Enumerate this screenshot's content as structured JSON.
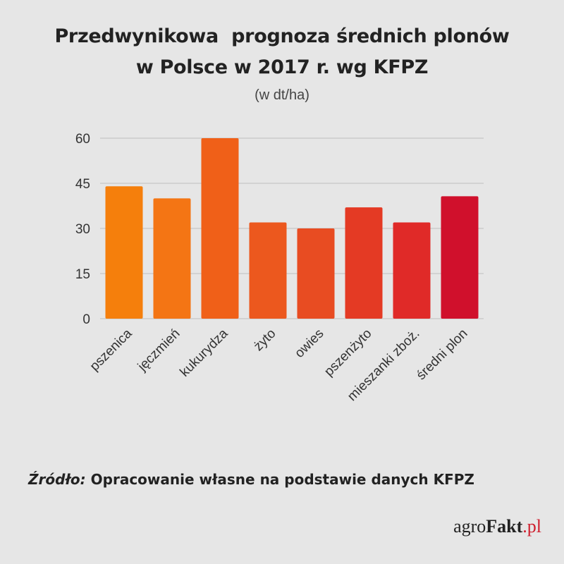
{
  "title_line1": "Przedwynikowa  prognoza średnich plonów",
  "title_line2": "w Polsce w 2017 r. wg KFPZ",
  "subtitle": "(w dt/ha)",
  "source": {
    "label": "Źródło:",
    "text": " Opracowanie własne na podstawie danych KFPZ"
  },
  "logo": {
    "part1": "agro",
    "part2": "Fakt",
    "part3": ".pl"
  },
  "chart_data": {
    "type": "bar",
    "categories": [
      "pszenica",
      "jęczmień",
      "kukurydza",
      "żyto",
      "owies",
      "pszenżyto",
      "mieszanki zboż.",
      "średni plon"
    ],
    "values": [
      44,
      40,
      60,
      32,
      30,
      37,
      32,
      40.7
    ],
    "colors": [
      "#f57f0c",
      "#f47514",
      "#f06018",
      "#ec581e",
      "#e84c22",
      "#e43a24",
      "#e02a28",
      "#d0102c"
    ],
    "yticks": [
      0,
      15,
      30,
      45,
      60
    ],
    "ylim": [
      0,
      60
    ],
    "grid": true,
    "title": "Przedwynikowa  prognoza średnich plonów w Polsce w 2017 r. wg KFPZ",
    "ylabel": "(w dt/ha)",
    "xlabel": ""
  }
}
